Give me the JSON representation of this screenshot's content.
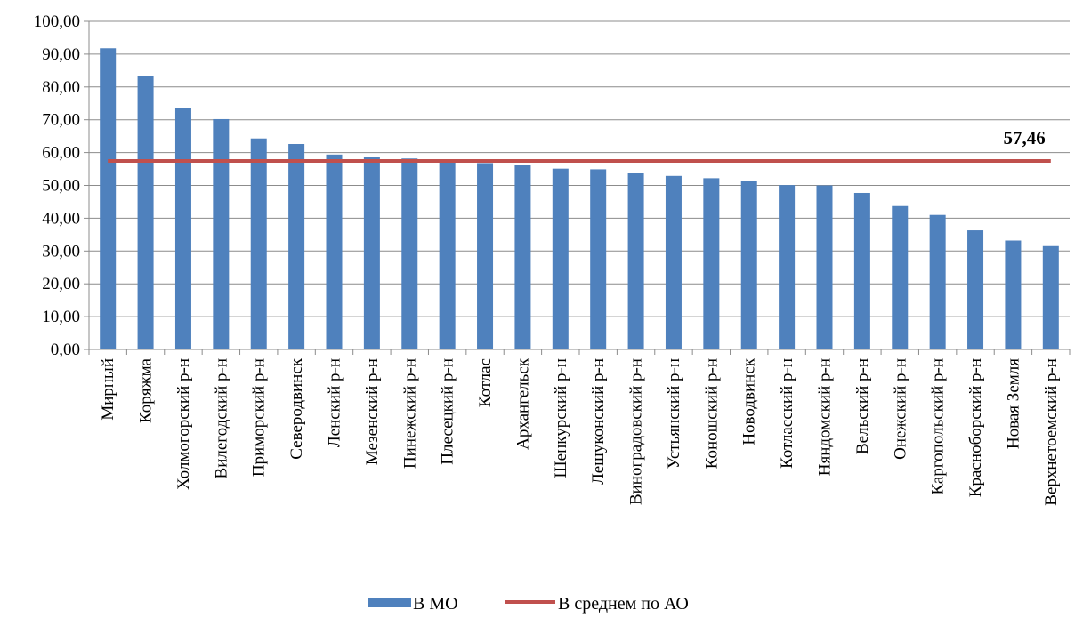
{
  "chart_data": {
    "type": "bar",
    "title": "",
    "xlabel": "",
    "ylabel": "",
    "ylim": [
      0,
      100
    ],
    "yticks": [
      "0,00",
      "10,00",
      "20,00",
      "30,00",
      "40,00",
      "50,00",
      "60,00",
      "70,00",
      "80,00",
      "90,00",
      "100,00"
    ],
    "grid": true,
    "legend_position": "bottom",
    "categories": [
      "Мирный",
      "Коряжма",
      "Холмогорский р-н",
      "Вилегодский р-н",
      "Приморский р-н",
      "Северодвинск",
      "Ленский р-н",
      "Мезенский р-н",
      "Пинежский р-н",
      "Плесецкий р-н",
      "Котлас",
      "Архангельск",
      "Шенкурский р-н",
      "Лешуконский р-н",
      "Виноградовский р-н",
      "Устьянский р-н",
      "Коношский р-н",
      "Новодвинск",
      "Котласский р-н",
      "Няндомский р-н",
      "Вельский р-н",
      "Онежский р-н",
      "Каргопольский р-н",
      "Красноборский р-н",
      "Новая Земля",
      "Верхнетоемский р-н"
    ],
    "series": [
      {
        "name": "В МО",
        "type": "bar",
        "color": "#4F81BD",
        "values": [
          91.8,
          83.3,
          73.5,
          70.2,
          64.3,
          62.6,
          59.4,
          58.7,
          58.2,
          57.8,
          56.8,
          56.2,
          55.1,
          54.9,
          53.8,
          52.9,
          52.2,
          51.4,
          50.1,
          50.0,
          47.7,
          43.7,
          41.0,
          36.3,
          33.2,
          31.5
        ]
      },
      {
        "name": "В среднем по АО",
        "type": "line",
        "color": "#C0504D",
        "value": 57.46,
        "label": "57,46"
      }
    ]
  }
}
